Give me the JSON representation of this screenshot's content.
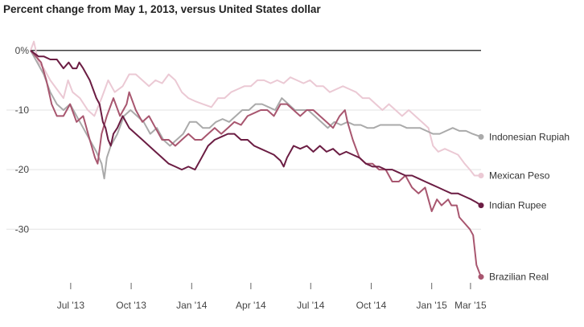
{
  "chart_data": {
    "type": "line",
    "title": "Percent change from May 1, 2013, versus United States dollar",
    "xlabel": "",
    "ylabel": "",
    "x_range_days": [
      0,
      685
    ],
    "ylim": [
      -39,
      2
    ],
    "yticks": [
      {
        "value": 0,
        "label": "0%"
      },
      {
        "value": -10,
        "label": "-10"
      },
      {
        "value": -20,
        "label": "-20"
      },
      {
        "value": -30,
        "label": "-30"
      }
    ],
    "xticks": [
      {
        "day": 61,
        "label": "Jul '13"
      },
      {
        "day": 153,
        "label": "Oct '13"
      },
      {
        "day": 245,
        "label": "Jan '14"
      },
      {
        "day": 335,
        "label": "Apr '14"
      },
      {
        "day": 426,
        "label": "Jul '14"
      },
      {
        "day": 518,
        "label": "Oct '14"
      },
      {
        "day": 610,
        "label": "Jan '15"
      },
      {
        "day": 669,
        "label": "Mar '15"
      }
    ],
    "series": [
      {
        "name": "Mexican Peso",
        "color": "#ebc9d4",
        "points": [
          [
            0,
            0
          ],
          [
            5,
            1.5
          ],
          [
            12,
            -2
          ],
          [
            20,
            -3
          ],
          [
            30,
            -5
          ],
          [
            40,
            -6.5
          ],
          [
            50,
            -8
          ],
          [
            57,
            -5
          ],
          [
            64,
            -7
          ],
          [
            75,
            -8
          ],
          [
            87,
            -10
          ],
          [
            97,
            -11
          ],
          [
            108,
            -8
          ],
          [
            118,
            -5
          ],
          [
            128,
            -7
          ],
          [
            140,
            -6
          ],
          [
            150,
            -4
          ],
          [
            160,
            -4
          ],
          [
            170,
            -5
          ],
          [
            180,
            -6
          ],
          [
            190,
            -5
          ],
          [
            200,
            -5.5
          ],
          [
            210,
            -4
          ],
          [
            220,
            -5
          ],
          [
            230,
            -7
          ],
          [
            240,
            -8
          ],
          [
            250,
            -8.5
          ],
          [
            262,
            -9
          ],
          [
            275,
            -9.5
          ],
          [
            285,
            -8
          ],
          [
            295,
            -8
          ],
          [
            305,
            -7
          ],
          [
            315,
            -6.5
          ],
          [
            325,
            -6
          ],
          [
            335,
            -6
          ],
          [
            345,
            -5
          ],
          [
            355,
            -5
          ],
          [
            365,
            -5.5
          ],
          [
            375,
            -5
          ],
          [
            385,
            -5.5
          ],
          [
            395,
            -4.5
          ],
          [
            405,
            -5
          ],
          [
            415,
            -5.5
          ],
          [
            425,
            -5
          ],
          [
            435,
            -6
          ],
          [
            445,
            -6
          ],
          [
            455,
            -7
          ],
          [
            465,
            -6.5
          ],
          [
            475,
            -6
          ],
          [
            485,
            -6.5
          ],
          [
            495,
            -7
          ],
          [
            505,
            -8
          ],
          [
            515,
            -8
          ],
          [
            525,
            -9
          ],
          [
            535,
            -10
          ],
          [
            545,
            -9
          ],
          [
            555,
            -10
          ],
          [
            565,
            -11
          ],
          [
            575,
            -10
          ],
          [
            585,
            -11
          ],
          [
            595,
            -12
          ],
          [
            605,
            -13
          ],
          [
            612,
            -16
          ],
          [
            620,
            -17
          ],
          [
            630,
            -16.5
          ],
          [
            640,
            -17
          ],
          [
            650,
            -17.5
          ],
          [
            660,
            -19
          ],
          [
            668,
            -20
          ],
          [
            675,
            -21
          ],
          [
            685,
            -21
          ]
        ]
      },
      {
        "name": "Indonesian Rupiah",
        "color": "#aaaaaa",
        "points": [
          [
            0,
            0
          ],
          [
            10,
            -2
          ],
          [
            20,
            -4
          ],
          [
            30,
            -7
          ],
          [
            40,
            -9
          ],
          [
            50,
            -10
          ],
          [
            60,
            -9
          ],
          [
            70,
            -11
          ],
          [
            80,
            -13
          ],
          [
            90,
            -15
          ],
          [
            100,
            -17
          ],
          [
            108,
            -19
          ],
          [
            112,
            -21.5
          ],
          [
            116,
            -18
          ],
          [
            122,
            -16
          ],
          [
            132,
            -14
          ],
          [
            142,
            -11
          ],
          [
            152,
            -10
          ],
          [
            162,
            -11
          ],
          [
            172,
            -12
          ],
          [
            182,
            -14
          ],
          [
            192,
            -13
          ],
          [
            202,
            -15
          ],
          [
            212,
            -16
          ],
          [
            222,
            -15
          ],
          [
            232,
            -14
          ],
          [
            242,
            -12
          ],
          [
            252,
            -12
          ],
          [
            262,
            -13
          ],
          [
            272,
            -13
          ],
          [
            282,
            -12
          ],
          [
            292,
            -11.5
          ],
          [
            302,
            -12
          ],
          [
            312,
            -11
          ],
          [
            322,
            -10
          ],
          [
            332,
            -10
          ],
          [
            342,
            -9
          ],
          [
            352,
            -9
          ],
          [
            362,
            -9.5
          ],
          [
            372,
            -10
          ],
          [
            382,
            -8
          ],
          [
            392,
            -9
          ],
          [
            402,
            -10
          ],
          [
            412,
            -10
          ],
          [
            422,
            -10
          ],
          [
            432,
            -11
          ],
          [
            442,
            -12
          ],
          [
            452,
            -13
          ],
          [
            462,
            -12
          ],
          [
            472,
            -12.5
          ],
          [
            482,
            -12
          ],
          [
            492,
            -12.5
          ],
          [
            502,
            -12.5
          ],
          [
            512,
            -13
          ],
          [
            522,
            -13
          ],
          [
            532,
            -12.5
          ],
          [
            542,
            -12.5
          ],
          [
            552,
            -12.5
          ],
          [
            562,
            -12.5
          ],
          [
            572,
            -13
          ],
          [
            582,
            -13
          ],
          [
            592,
            -13
          ],
          [
            602,
            -13.5
          ],
          [
            612,
            -14
          ],
          [
            622,
            -14
          ],
          [
            632,
            -13.5
          ],
          [
            642,
            -13
          ],
          [
            652,
            -13.5
          ],
          [
            662,
            -13.5
          ],
          [
            672,
            -14
          ],
          [
            685,
            -14.5
          ]
        ]
      },
      {
        "name": "Brazilian Real",
        "color": "#a8566f",
        "points": [
          [
            0,
            0
          ],
          [
            8,
            -1
          ],
          [
            16,
            -2
          ],
          [
            24,
            -5
          ],
          [
            32,
            -9
          ],
          [
            40,
            -11
          ],
          [
            50,
            -11
          ],
          [
            60,
            -9
          ],
          [
            70,
            -12
          ],
          [
            80,
            -11
          ],
          [
            90,
            -15
          ],
          [
            98,
            -18
          ],
          [
            102,
            -19
          ],
          [
            108,
            -14
          ],
          [
            116,
            -11
          ],
          [
            126,
            -8
          ],
          [
            136,
            -11
          ],
          [
            146,
            -9
          ],
          [
            150,
            -7
          ],
          [
            160,
            -10
          ],
          [
            170,
            -12
          ],
          [
            180,
            -11
          ],
          [
            190,
            -13
          ],
          [
            200,
            -15
          ],
          [
            210,
            -15
          ],
          [
            220,
            -16
          ],
          [
            230,
            -15
          ],
          [
            240,
            -14
          ],
          [
            250,
            -15
          ],
          [
            260,
            -15
          ],
          [
            270,
            -14
          ],
          [
            280,
            -13
          ],
          [
            290,
            -14
          ],
          [
            300,
            -13
          ],
          [
            310,
            -12
          ],
          [
            320,
            -12.5
          ],
          [
            330,
            -11
          ],
          [
            340,
            -10.5
          ],
          [
            350,
            -10
          ],
          [
            360,
            -10
          ],
          [
            370,
            -11
          ],
          [
            380,
            -9
          ],
          [
            390,
            -9
          ],
          [
            400,
            -10
          ],
          [
            410,
            -11
          ],
          [
            420,
            -10
          ],
          [
            430,
            -10
          ],
          [
            440,
            -11
          ],
          [
            450,
            -12
          ],
          [
            460,
            -13
          ],
          [
            470,
            -11
          ],
          [
            478,
            -10
          ],
          [
            482,
            -12
          ],
          [
            490,
            -15
          ],
          [
            500,
            -18
          ],
          [
            510,
            -19
          ],
          [
            520,
            -19
          ],
          [
            530,
            -20
          ],
          [
            540,
            -20
          ],
          [
            550,
            -22
          ],
          [
            560,
            -22
          ],
          [
            570,
            -21
          ],
          [
            580,
            -23
          ],
          [
            590,
            -24
          ],
          [
            600,
            -23
          ],
          [
            605,
            -25
          ],
          [
            610,
            -27
          ],
          [
            618,
            -25
          ],
          [
            625,
            -26
          ],
          [
            635,
            -25
          ],
          [
            640,
            -26
          ],
          [
            648,
            -26
          ],
          [
            652,
            -28
          ],
          [
            660,
            -29
          ],
          [
            668,
            -30
          ],
          [
            673,
            -31
          ],
          [
            678,
            -36
          ],
          [
            685,
            -38
          ]
        ]
      },
      {
        "name": "Indian Rupee",
        "color": "#6b1d43",
        "points": [
          [
            0,
            0
          ],
          [
            6,
            -0.5
          ],
          [
            12,
            -1
          ],
          [
            20,
            -1
          ],
          [
            30,
            -1.5
          ],
          [
            40,
            -1.5
          ],
          [
            50,
            -3
          ],
          [
            58,
            -2
          ],
          [
            64,
            -3
          ],
          [
            70,
            -3
          ],
          [
            74,
            -2
          ],
          [
            80,
            -3
          ],
          [
            90,
            -5
          ],
          [
            100,
            -8
          ],
          [
            105,
            -9
          ],
          [
            110,
            -12
          ],
          [
            114,
            -13
          ],
          [
            118,
            -15
          ],
          [
            122,
            -16
          ],
          [
            126,
            -14
          ],
          [
            132,
            -13
          ],
          [
            140,
            -11
          ],
          [
            150,
            -13
          ],
          [
            160,
            -14
          ],
          [
            170,
            -15
          ],
          [
            180,
            -16
          ],
          [
            190,
            -17
          ],
          [
            200,
            -18
          ],
          [
            210,
            -19
          ],
          [
            220,
            -19.5
          ],
          [
            230,
            -20
          ],
          [
            240,
            -19.5
          ],
          [
            250,
            -20
          ],
          [
            260,
            -18
          ],
          [
            270,
            -16
          ],
          [
            280,
            -15
          ],
          [
            290,
            -14.5
          ],
          [
            300,
            -14
          ],
          [
            310,
            -14
          ],
          [
            320,
            -15
          ],
          [
            330,
            -15
          ],
          [
            340,
            -16
          ],
          [
            350,
            -16.5
          ],
          [
            360,
            -17
          ],
          [
            370,
            -17.5
          ],
          [
            380,
            -18.5
          ],
          [
            385,
            -19.5
          ],
          [
            390,
            -18
          ],
          [
            400,
            -16
          ],
          [
            410,
            -16.5
          ],
          [
            420,
            -16
          ],
          [
            430,
            -17
          ],
          [
            440,
            -16
          ],
          [
            450,
            -17
          ],
          [
            460,
            -16.5
          ],
          [
            470,
            -17.5
          ],
          [
            480,
            -17
          ],
          [
            490,
            -17.5
          ],
          [
            500,
            -18
          ],
          [
            510,
            -19
          ],
          [
            520,
            -19.5
          ],
          [
            530,
            -19.5
          ],
          [
            540,
            -20
          ],
          [
            550,
            -20
          ],
          [
            560,
            -20.5
          ],
          [
            570,
            -21
          ],
          [
            580,
            -21
          ],
          [
            590,
            -21.5
          ],
          [
            600,
            -22
          ],
          [
            610,
            -22.5
          ],
          [
            620,
            -23
          ],
          [
            630,
            -23.5
          ],
          [
            640,
            -24
          ],
          [
            650,
            -24
          ],
          [
            660,
            -24.5
          ],
          [
            670,
            -25
          ],
          [
            678,
            -25.5
          ],
          [
            685,
            -26
          ]
        ]
      }
    ],
    "legend": [
      {
        "series": "Indonesian Rupiah",
        "label": "Indonesian Rupiah",
        "end_value": -14.5
      },
      {
        "series": "Mexican Peso",
        "label": "Mexican Peso",
        "end_value": -21
      },
      {
        "series": "Indian Rupee",
        "label": "Indian Rupee",
        "end_value": -26
      },
      {
        "series": "Brazilian Real",
        "label": "Brazilian Real",
        "end_value": -38
      }
    ],
    "legend_placement": "right-end-labels",
    "grid": true
  }
}
